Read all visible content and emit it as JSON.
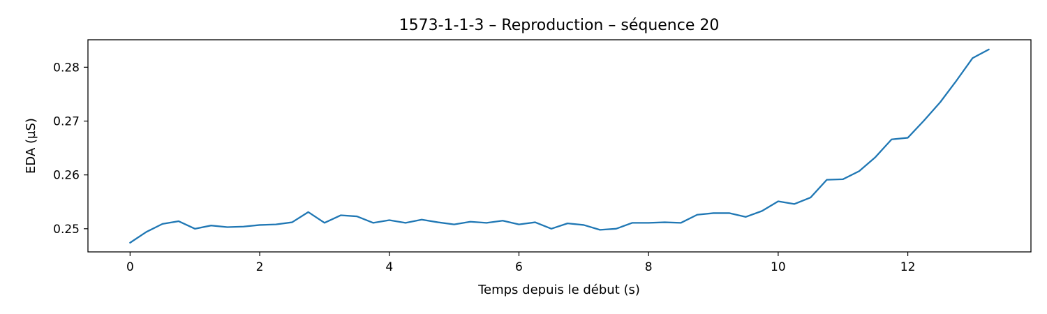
{
  "chart_data": {
    "type": "line",
    "title": "1573-1-1-3 – Reproduction – séquence 20",
    "xlabel": "Temps depuis le début (s)",
    "ylabel": "EDA (µS)",
    "xlim": [
      -0.65,
      13.9
    ],
    "ylim": [
      0.2457,
      0.2851
    ],
    "xticks": [
      0,
      2,
      4,
      6,
      8,
      10,
      12
    ],
    "xtick_labels": [
      "0",
      "2",
      "4",
      "6",
      "8",
      "10",
      "12"
    ],
    "yticks": [
      0.25,
      0.26,
      0.27,
      0.28
    ],
    "ytick_labels": [
      "0.25",
      "0.26",
      "0.27",
      "0.28"
    ],
    "grid": false,
    "legend": false,
    "series": [
      {
        "color": "#1f77b4",
        "x": [
          0,
          0.25,
          0.5,
          0.75,
          1,
          1.25,
          1.5,
          1.75,
          2,
          2.25,
          2.5,
          2.75,
          3,
          3.25,
          3.5,
          3.75,
          4,
          4.25,
          4.5,
          4.75,
          5,
          5.25,
          5.5,
          5.75,
          6,
          6.25,
          6.5,
          6.75,
          7,
          7.25,
          7.5,
          7.75,
          8,
          8.25,
          8.5,
          8.75,
          9,
          9.25,
          9.5,
          9.75,
          10,
          10.25,
          10.5,
          10.75,
          11,
          11.25,
          11.5,
          11.75,
          12,
          12.25,
          12.5,
          12.75,
          13,
          13.25
        ],
        "y": [
          0.2474,
          0.2494,
          0.2509,
          0.2514,
          0.25,
          0.2506,
          0.2503,
          0.2504,
          0.2507,
          0.2508,
          0.2512,
          0.2531,
          0.2511,
          0.2525,
          0.2523,
          0.2511,
          0.2516,
          0.2511,
          0.2517,
          0.2512,
          0.2508,
          0.2513,
          0.2511,
          0.2515,
          0.2508,
          0.2512,
          0.25,
          0.251,
          0.2507,
          0.2498,
          0.25,
          0.2511,
          0.2511,
          0.2512,
          0.2511,
          0.2526,
          0.2529,
          0.2529,
          0.2522,
          0.2533,
          0.2551,
          0.2546,
          0.2558,
          0.2591,
          0.2592,
          0.2607,
          0.2633,
          0.2666,
          0.2669,
          0.2701,
          0.2735,
          0.2775,
          0.2817,
          0.2833
        ]
      }
    ]
  }
}
